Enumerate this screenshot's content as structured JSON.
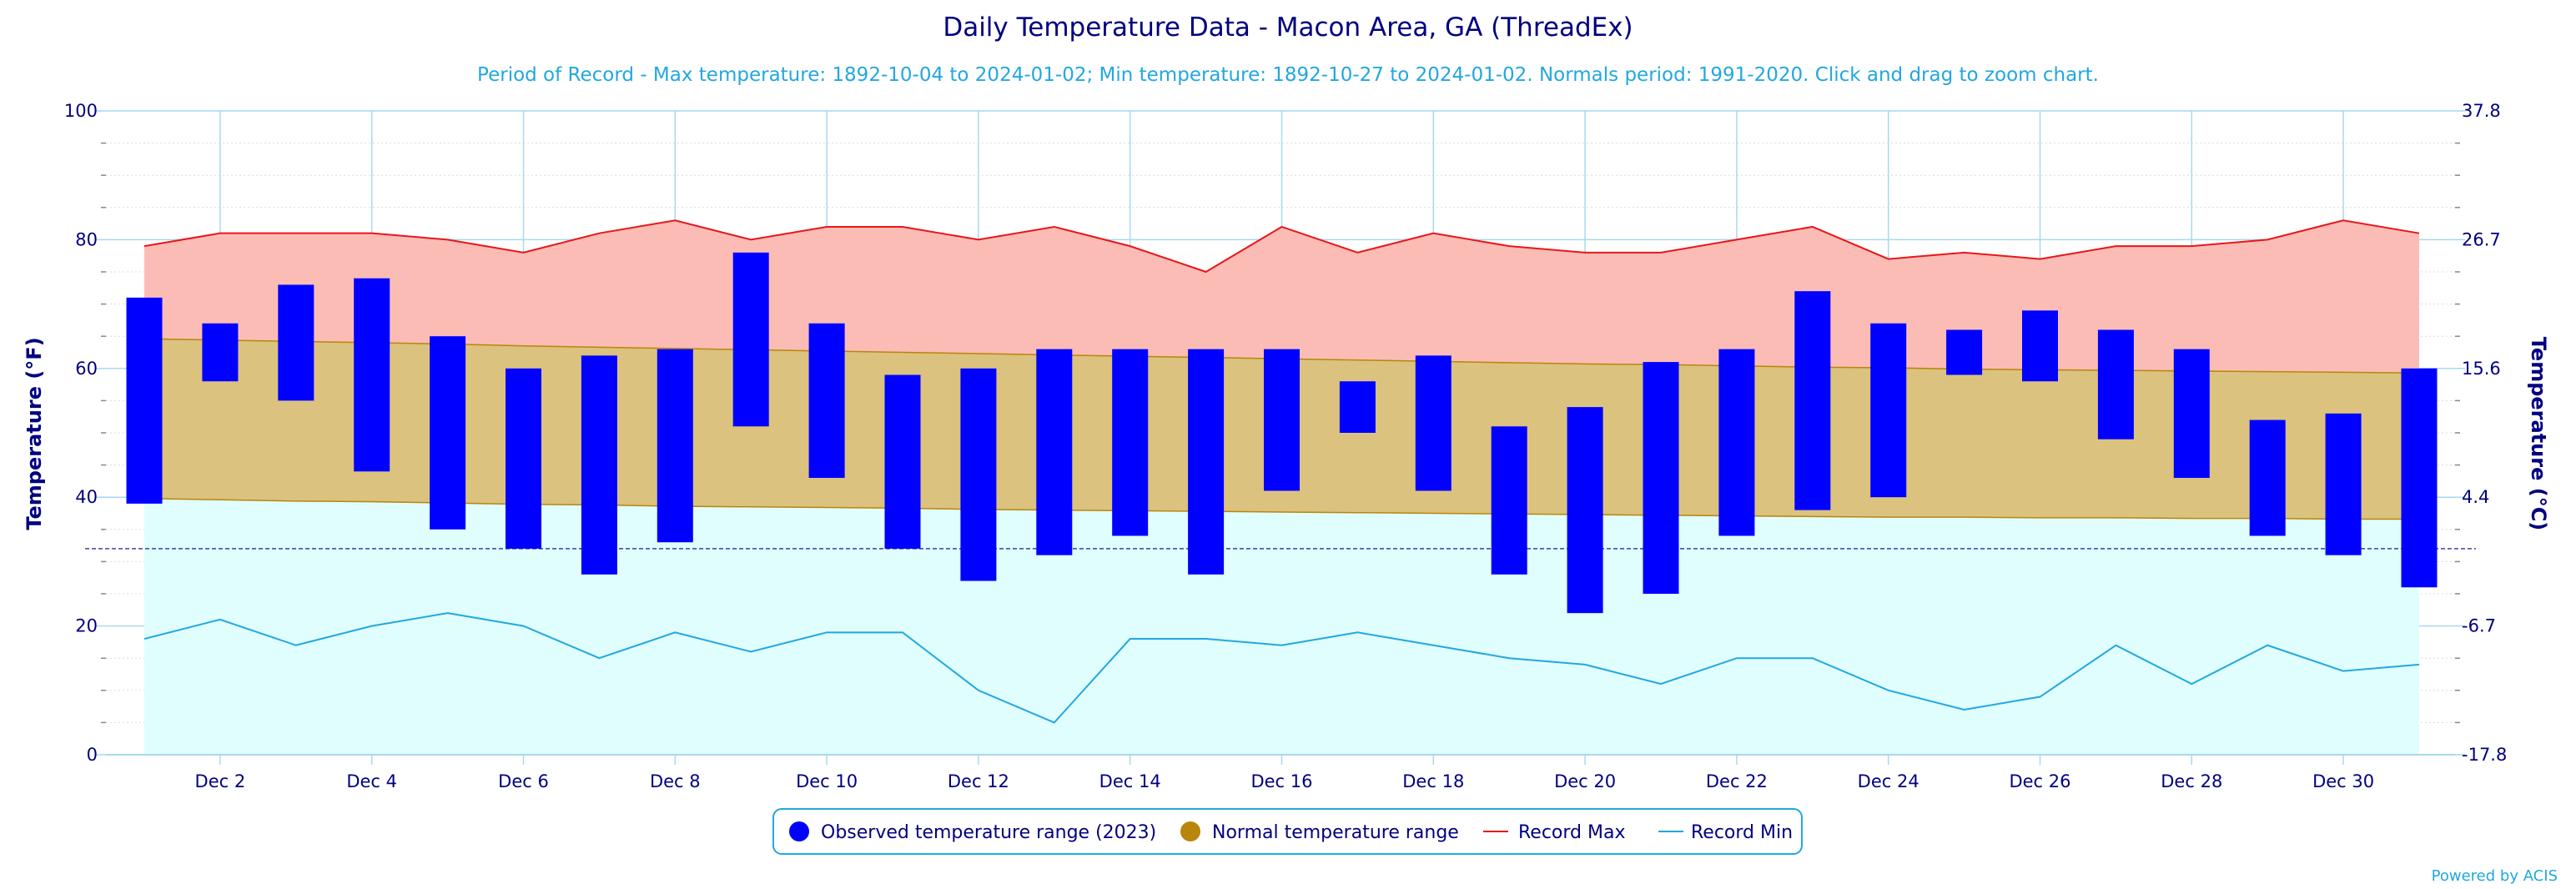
{
  "chart_data": {
    "type": "bar",
    "title": "Daily Temperature Data - Macon Area, GA (ThreadEx)",
    "subtitle": "Period of Record - Max temperature: 1892-10-04 to 2024-01-02; Min temperature: 1892-10-27 to 2024-01-02. Normals period: 1991-2020. Click and drag to zoom chart.",
    "ylabel_left": "Temperature (°F)",
    "ylabel_right": "Temperature (°C)",
    "ylim": [
      0,
      100
    ],
    "y_ticks": [
      0,
      20,
      40,
      60,
      80,
      100
    ],
    "y_ticks_right": [
      "-17.8",
      "-6.7",
      "4.4",
      "15.6",
      "26.7",
      "37.8"
    ],
    "x_tick_labels": [
      "Dec 2",
      "Dec 4",
      "Dec 6",
      "Dec 8",
      "Dec 10",
      "Dec 12",
      "Dec 14",
      "Dec 16",
      "Dec 18",
      "Dec 20",
      "Dec 22",
      "Dec 24",
      "Dec 26",
      "Dec 28",
      "Dec 30"
    ],
    "days": [
      1,
      2,
      3,
      4,
      5,
      6,
      7,
      8,
      9,
      10,
      11,
      12,
      13,
      14,
      15,
      16,
      17,
      18,
      19,
      20,
      21,
      22,
      23,
      24,
      25,
      26,
      27,
      28,
      29,
      30,
      31
    ],
    "freezing_line": 32,
    "series": [
      {
        "name": "Observed temperature range (2023)",
        "color": "#0000ff",
        "low": [
          39,
          58,
          55,
          44,
          35,
          32,
          28,
          33,
          51,
          43,
          32,
          27,
          31,
          34,
          28,
          41,
          50,
          41,
          28,
          22,
          25,
          34,
          38,
          40,
          59,
          58,
          49,
          43,
          34,
          31,
          26
        ],
        "high": [
          71,
          67,
          73,
          74,
          65,
          60,
          62,
          63,
          78,
          67,
          59,
          60,
          63,
          63,
          63,
          63,
          58,
          62,
          51,
          54,
          61,
          63,
          72,
          67,
          66,
          69,
          66,
          63,
          52,
          53,
          60
        ]
      },
      {
        "name": "Normal temperature range",
        "color": "#b8860b",
        "low": [
          39.8,
          39.6,
          39.4,
          39.3,
          39.1,
          38.9,
          38.8,
          38.6,
          38.5,
          38.4,
          38.3,
          38.1,
          38.0,
          37.9,
          37.8,
          37.7,
          37.6,
          37.5,
          37.4,
          37.3,
          37.2,
          37.1,
          37.0,
          36.9,
          36.9,
          36.8,
          36.8,
          36.7,
          36.7,
          36.6,
          36.6
        ],
        "high": [
          64.6,
          64.4,
          64.2,
          64.0,
          63.8,
          63.5,
          63.3,
          63.1,
          62.9,
          62.7,
          62.5,
          62.3,
          62.1,
          61.9,
          61.7,
          61.5,
          61.3,
          61.1,
          60.9,
          60.7,
          60.6,
          60.4,
          60.2,
          60.1,
          59.9,
          59.8,
          59.7,
          59.6,
          59.5,
          59.4,
          59.3
        ]
      },
      {
        "name": "Record Max",
        "color": "#e8161b",
        "values": [
          79,
          81,
          81,
          81,
          80,
          78,
          81,
          83,
          80,
          82,
          82,
          80,
          82,
          79,
          75,
          82,
          78,
          81,
          79,
          78,
          78,
          80,
          82,
          77,
          78,
          77,
          79,
          79,
          80,
          83,
          81
        ]
      },
      {
        "name": "Record Min",
        "color": "#22a7e0",
        "values": [
          18,
          21,
          17,
          20,
          22,
          20,
          15,
          19,
          16,
          19,
          19,
          10,
          5,
          18,
          18,
          17,
          19,
          17,
          15,
          14,
          11,
          15,
          15,
          10,
          7,
          9,
          17,
          11,
          17,
          13,
          14
        ]
      }
    ]
  },
  "credit": "Powered by ACIS"
}
